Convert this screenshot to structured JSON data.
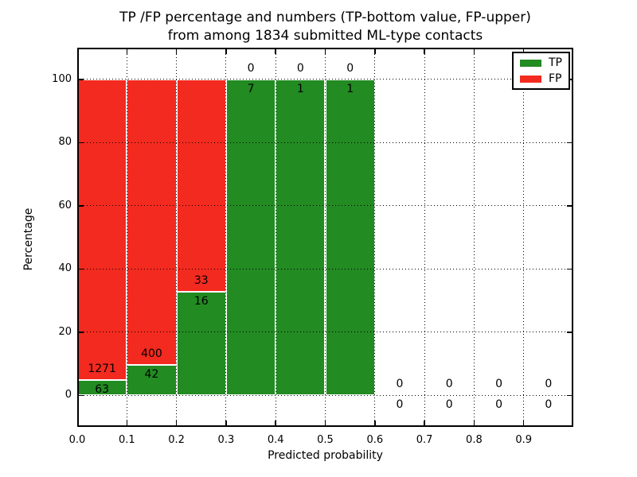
{
  "figure": {
    "title_line1": "TP /FP percentage and numbers (TP-bottom value, FP-upper)",
    "title_line2": "from among 1834 submitted ML-type contacts"
  },
  "chart_data": {
    "type": "bar",
    "stacked": true,
    "title": "TP /FP percentage and numbers (TP-bottom value, FP-upper)\nfrom among 1834 submitted ML-type contacts",
    "xlabel": "Predicted probability",
    "ylabel": "Percentage",
    "xlim": [
      0.0,
      1.0
    ],
    "ylim": [
      -10,
      110
    ],
    "x_tick_values": [
      0.0,
      0.1,
      0.2,
      0.3,
      0.4,
      0.5,
      0.6,
      0.7,
      0.8,
      0.9
    ],
    "x_tick_labels": [
      "0.0",
      "0.1",
      "0.2",
      "0.3",
      "0.4",
      "0.5",
      "0.6",
      "0.7",
      "0.8",
      "0.9"
    ],
    "y_ticks": [
      0,
      20,
      40,
      60,
      80,
      100
    ],
    "grid": true,
    "legend_position": "upper right",
    "total_contacts": 1834,
    "note": "Each bin stacks TP (green, bottom) and FP (red, top) as percentage; annotations are raw counts: TP below boundary, FP above",
    "bins": [
      {
        "range": [
          0.0,
          0.1
        ],
        "tp": 63,
        "fp": 1271,
        "tp_pct": 4.72,
        "fp_pct": 95.28
      },
      {
        "range": [
          0.1,
          0.2
        ],
        "tp": 42,
        "fp": 400,
        "tp_pct": 9.5,
        "fp_pct": 90.5
      },
      {
        "range": [
          0.2,
          0.3
        ],
        "tp": 16,
        "fp": 33,
        "tp_pct": 32.65,
        "fp_pct": 67.35
      },
      {
        "range": [
          0.3,
          0.4
        ],
        "tp": 7,
        "fp": 0,
        "tp_pct": 100,
        "fp_pct": 0
      },
      {
        "range": [
          0.4,
          0.5
        ],
        "tp": 1,
        "fp": 0,
        "tp_pct": 100,
        "fp_pct": 0
      },
      {
        "range": [
          0.5,
          0.6
        ],
        "tp": 1,
        "fp": 0,
        "tp_pct": 100,
        "fp_pct": 0
      },
      {
        "range": [
          0.6,
          0.7
        ],
        "tp": 0,
        "fp": 0,
        "tp_pct": 0,
        "fp_pct": 0
      },
      {
        "range": [
          0.7,
          0.8
        ],
        "tp": 0,
        "fp": 0,
        "tp_pct": 0,
        "fp_pct": 0
      },
      {
        "range": [
          0.8,
          0.9
        ],
        "tp": 0,
        "fp": 0,
        "tp_pct": 0,
        "fp_pct": 0
      },
      {
        "range": [
          0.9,
          1.0
        ],
        "tp": 0,
        "fp": 0,
        "tp_pct": 0,
        "fp_pct": 0
      }
    ],
    "legend": [
      {
        "label": "TP",
        "color": "#228b22"
      },
      {
        "label": "FP",
        "color": "#f32a1f"
      }
    ],
    "colors": {
      "tp_green": "#228b22",
      "fp_red": "#f32a1f",
      "bar_edge": "#ffffff",
      "grid": "#000000",
      "background": "#ffffff"
    }
  }
}
